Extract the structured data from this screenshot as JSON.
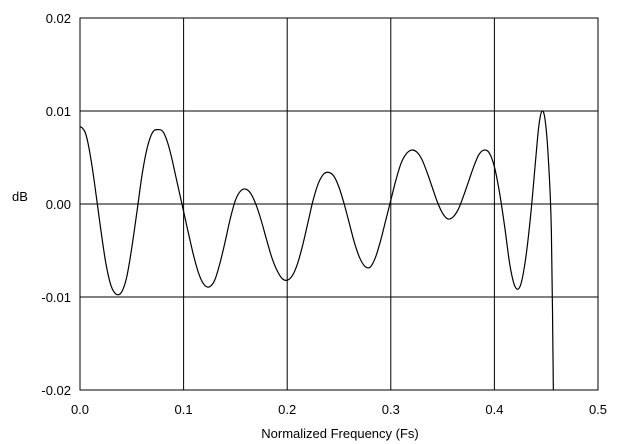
{
  "chart_data": {
    "type": "line",
    "title": "",
    "xlabel": "Normalized Frequency (Fs)",
    "ylabel": "dB",
    "xlim": [
      0.0,
      0.5
    ],
    "ylim": [
      -0.02,
      0.02
    ],
    "grid": true,
    "legend": "none",
    "x_ticks": [
      0.0,
      0.1,
      0.2,
      0.3,
      0.4,
      0.5
    ],
    "x_tick_labels": [
      "0.0",
      "0.1",
      "0.2",
      "0.3",
      "0.4",
      "0.5"
    ],
    "y_ticks": [
      0.02,
      0.01,
      0.0,
      -0.01,
      -0.02
    ],
    "y_tick_labels": [
      "0.02",
      "0.01",
      "0.00",
      "-0.01",
      "-0.02"
    ],
    "colors": {
      "line": "#000000",
      "grid": "#000000",
      "frame": "#000000"
    },
    "series": [
      {
        "x": [
          0.0,
          0.002,
          0.005,
          0.008,
          0.012,
          0.016,
          0.02,
          0.025,
          0.03,
          0.035,
          0.04,
          0.045,
          0.05,
          0.055,
          0.06,
          0.065,
          0.07,
          0.075,
          0.08,
          0.084,
          0.088,
          0.092,
          0.096,
          0.1,
          0.105,
          0.11,
          0.115,
          0.12,
          0.125,
          0.13,
          0.135,
          0.14,
          0.145,
          0.15,
          0.155,
          0.16,
          0.165,
          0.17,
          0.175,
          0.18,
          0.185,
          0.19,
          0.195,
          0.2,
          0.205,
          0.21,
          0.215,
          0.22,
          0.225,
          0.23,
          0.235,
          0.24,
          0.245,
          0.25,
          0.255,
          0.26,
          0.265,
          0.27,
          0.275,
          0.28,
          0.285,
          0.29,
          0.295,
          0.3,
          0.305,
          0.31,
          0.315,
          0.32,
          0.325,
          0.33,
          0.335,
          0.34,
          0.345,
          0.35,
          0.355,
          0.36,
          0.365,
          0.37,
          0.375,
          0.38,
          0.385,
          0.39,
          0.395,
          0.4,
          0.405,
          0.41,
          0.415,
          0.42,
          0.425,
          0.43,
          0.435,
          0.44,
          0.443,
          0.446,
          0.449,
          0.452,
          0.455,
          0.457
        ],
        "values": [
          0.0083,
          0.0082,
          0.0077,
          0.0064,
          0.0038,
          0.0006,
          -0.0027,
          -0.0064,
          -0.0088,
          -0.0097,
          -0.0095,
          -0.0079,
          -0.0047,
          -0.0008,
          0.0032,
          0.0061,
          0.0077,
          0.008,
          0.0078,
          0.0068,
          0.0052,
          0.0032,
          0.0012,
          -0.0008,
          -0.0033,
          -0.0057,
          -0.0076,
          -0.0087,
          -0.0089,
          -0.0082,
          -0.0064,
          -0.0041,
          -0.0016,
          0.0004,
          0.0014,
          0.0016,
          0.0011,
          -0.0001,
          -0.0018,
          -0.0038,
          -0.0057,
          -0.0071,
          -0.008,
          -0.0082,
          -0.0077,
          -0.0064,
          -0.0044,
          -0.002,
          0.0004,
          0.0022,
          0.0032,
          0.0034,
          0.003,
          0.0018,
          0.0,
          -0.0021,
          -0.0042,
          -0.0058,
          -0.0067,
          -0.0068,
          -0.0058,
          -0.004,
          -0.0018,
          0.0004,
          0.0026,
          0.0044,
          0.0054,
          0.0058,
          0.0056,
          0.0048,
          0.0034,
          0.0018,
          0.0002,
          -0.001,
          -0.0016,
          -0.0014,
          -0.0006,
          0.0008,
          0.0024,
          0.004,
          0.0053,
          0.0058,
          0.0055,
          0.004,
          0.0012,
          -0.0025,
          -0.0066,
          -0.0089,
          -0.0088,
          -0.006,
          -0.0012,
          0.005,
          0.0085,
          0.01,
          0.009,
          0.005,
          -0.003,
          -0.021
        ]
      }
    ]
  }
}
